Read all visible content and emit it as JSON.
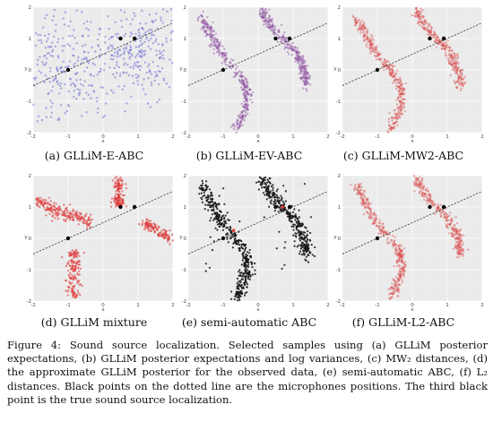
{
  "panels": [
    {
      "id": "a",
      "caption": "(a) GLLiM-E-ABC",
      "color": "#6f6fd6",
      "style": "diffuse",
      "opacity": 0.55
    },
    {
      "id": "b",
      "caption": "(b) GLLiM-EV-ABC",
      "color": "#8a4a9e",
      "style": "curves",
      "opacity": 0.45
    },
    {
      "id": "c",
      "caption": "(c) GLLiM-MW2-ABC",
      "color": "#d94d4d",
      "style": "curves",
      "opacity": 0.45
    },
    {
      "id": "d",
      "caption": "(d) GLLiM mixture",
      "color": "#e03a3a",
      "style": "mixture",
      "opacity": 0.6
    },
    {
      "id": "e",
      "caption": "(e) semi-automatic ABC",
      "color": "#111111",
      "style": "semi",
      "opacity": 0.85
    },
    {
      "id": "f",
      "caption": "(f) GLLiM-L2-ABC",
      "color": "#d94d4d",
      "style": "curves",
      "opacity": 0.45
    }
  ],
  "axes": {
    "x_label": "x",
    "y_label": "y",
    "x_ticks": [
      "-2",
      "-1",
      "0",
      "1",
      "2"
    ],
    "y_ticks": [
      "-2",
      "-1",
      "0",
      "1",
      "2"
    ],
    "xlim": [
      -2,
      2
    ],
    "ylim": [
      -2,
      2
    ]
  },
  "microphones": [
    [
      0.5,
      1.0
    ],
    [
      0.9,
      1.0
    ]
  ],
  "source": [
    -1.0,
    0.0
  ],
  "figure_caption": "Figure 4:  Sound source localization. Selected samples using (a) GLLiM posterior expectations, (b) GLLiM posterior expectations and log variances, (c) MW₂ distances, (d) the approximate GLLiM posterior for the observed data, (e) semi-automatic ABC, (f) L₂ distances. Black points on the dotted line are the microphones positions. The third black point is the true sound source localization."
}
